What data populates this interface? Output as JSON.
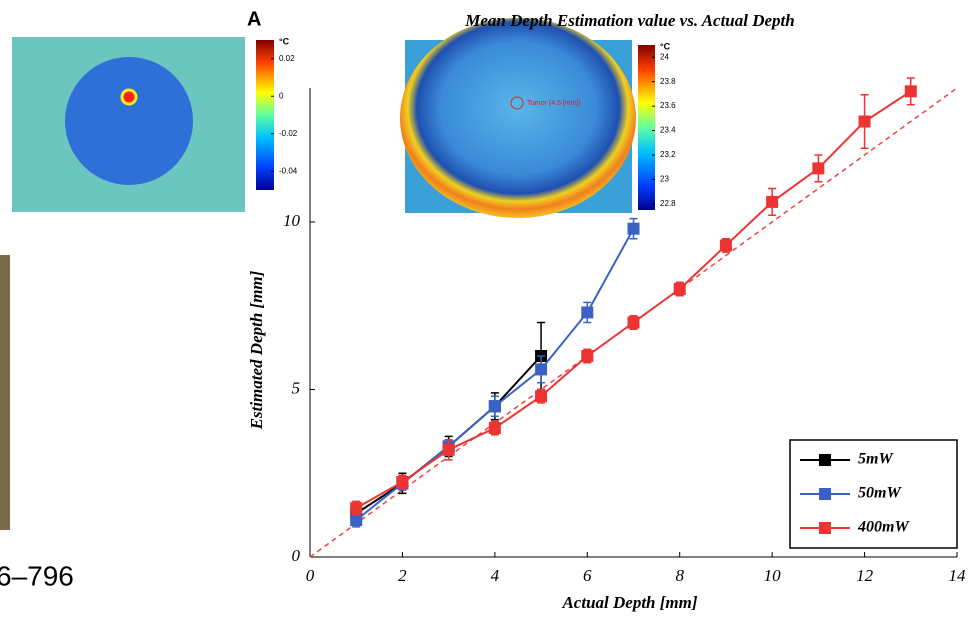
{
  "chart_data": {
    "type": "line",
    "panel_label": "A",
    "title": "Mean Depth Estimation value vs. Actual Depth",
    "xlabel": "Actual Depth [mm]",
    "ylabel": "Estimated Depth [mm]",
    "xlim": [
      0,
      14
    ],
    "xticks": [
      0,
      2,
      4,
      6,
      8,
      10,
      12,
      14
    ],
    "ylim": [
      0,
      14
    ],
    "yticks": [
      0,
      5,
      10
    ],
    "legend": "lower right",
    "reference_line": true,
    "series": [
      {
        "name": "5mW",
        "color": "#000000",
        "x": [
          1,
          2,
          3,
          4,
          5
        ],
        "values": [
          1.3,
          2.2,
          3.3,
          4.5,
          6.0
        ],
        "errors": [
          0.2,
          0.3,
          0.3,
          0.4,
          1.0
        ]
      },
      {
        "name": "50mW",
        "color": "#3a62c6",
        "x": [
          1,
          2,
          3,
          4,
          5,
          6,
          7
        ],
        "values": [
          1.1,
          2.2,
          3.3,
          4.5,
          5.6,
          7.3,
          9.8
        ],
        "errors": [
          0.2,
          0.2,
          0.2,
          0.3,
          0.4,
          0.3,
          0.3
        ]
      },
      {
        "name": "400mW",
        "color": "#ee3333",
        "x": [
          1,
          2,
          3,
          4,
          5,
          6,
          7,
          8,
          9,
          10,
          11,
          12,
          13
        ],
        "values": [
          1.46,
          2.24,
          3.2,
          3.85,
          4.8,
          6.0,
          7.0,
          8.0,
          9.3,
          10.6,
          11.6,
          13.0,
          13.9
        ],
        "errors": [
          0.2,
          0.2,
          0.3,
          0.2,
          0.2,
          0.2,
          0.2,
          0.2,
          0.2,
          0.4,
          0.4,
          0.8,
          0.4
        ]
      }
    ],
    "insets": [
      {
        "unit": "°C",
        "clim": [
          -0.05,
          0.03
        ],
        "ticks": [
          0.02,
          0,
          -0.02,
          -0.04
        ]
      },
      {
        "unit": "°C",
        "clim": [
          22.75,
          24.1
        ],
        "ticks": [
          24,
          23.8,
          23.6,
          23.4,
          23.2,
          23,
          22.8
        ],
        "annotation": "Tumor (4.5 [mm])"
      }
    ],
    "caption_fragment": "6–796"
  }
}
